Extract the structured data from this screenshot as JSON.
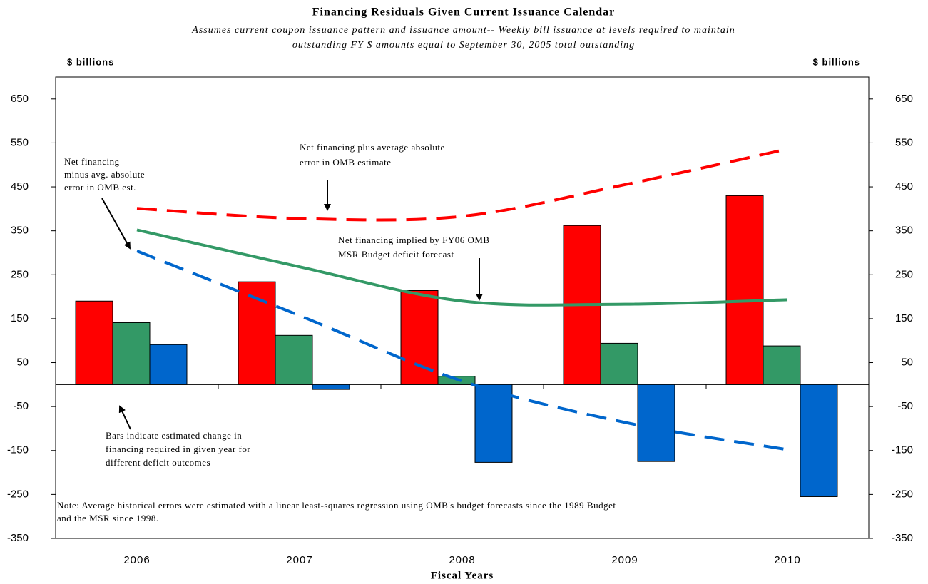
{
  "chart_data": {
    "type": "bar",
    "title": "Financing Residuals Given Current Issuance Calendar",
    "subtitle": [
      "Assumes current coupon issuance pattern and issuance amount-- Weekly bill issuance at levels required to maintain",
      "outstanding FY $ amounts equal to September 30, 2005 total outstanding"
    ],
    "y_label": "$ billions",
    "y2_label": "$ billions",
    "x_label": "Fiscal Years",
    "categories": [
      "2006",
      "2007",
      "2008",
      "2009",
      "2010"
    ],
    "series": [
      {
        "color": "#ff0000",
        "values": [
          190,
          234,
          214,
          362,
          430
        ]
      },
      {
        "color": "#339966",
        "values": [
          141,
          112,
          19,
          94,
          88
        ]
      },
      {
        "color": "#0066cc",
        "values": [
          91,
          -11,
          -177,
          -175,
          -255
        ]
      }
    ],
    "lines": [
      {
        "color": "#ff0000",
        "dashed": true,
        "values": [
          401,
          378,
          383,
          455,
          536
        ]
      },
      {
        "color": "#339966",
        "dashed": false,
        "values": [
          352,
          268,
          190,
          183,
          193
        ]
      },
      {
        "color": "#0066cc",
        "dashed": true,
        "values": [
          304,
          157,
          8,
          -86,
          -148
        ]
      }
    ],
    "ylim": [
      -350,
      700
    ],
    "yticks": [
      -350,
      -250,
      -150,
      -50,
      50,
      150,
      250,
      350,
      450,
      550,
      650
    ],
    "y2lim": [
      -350,
      700
    ],
    "y2ticks": [
      -350,
      -250,
      -150,
      -50,
      50,
      150,
      250,
      350,
      450,
      550,
      650
    ],
    "annotations": [
      [
        "Net financing",
        "minus avg. absolute",
        "error in OMB est."
      ],
      [
        "Net financing plus average absolute",
        "error in OMB  estimate"
      ],
      [
        "Net financing implied by FY06 OMB",
        "MSR Budget deficit forecast"
      ],
      [
        "Bars indicate estimated change in",
        "financing required in given year for",
        "different deficit outcomes"
      ]
    ],
    "note": [
      "Note: Average historical errors were estimated with a linear least-squares regression using OMB's budget forecasts since the 1989 Budget",
      " and the MSR since 1998."
    ]
  }
}
